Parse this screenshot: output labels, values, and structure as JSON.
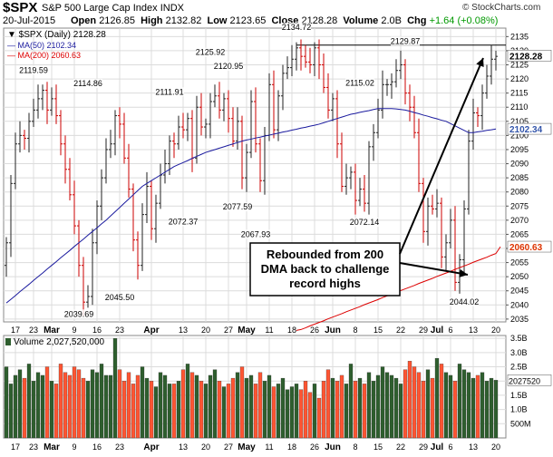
{
  "header": {
    "symbol": "$SPX",
    "name": "S&P 500 Large Cap Index",
    "exchange": "INDX",
    "site": "© StockCharts.com",
    "date": "20-Jul-2015",
    "open_label": "Open",
    "open": "2126.85",
    "high_label": "High",
    "high": "2132.82",
    "low_label": "Low",
    "low": "2123.65",
    "close_label": "Close",
    "close": "2128.28",
    "volume_label": "Volume",
    "volume": "2.0B",
    "chg_label": "Chg",
    "chg": "+1.64 (+0.08%)"
  },
  "legend": {
    "price": "$SPX (Daily) 2128.28",
    "ma50": "MA(50) 2102.34",
    "ma200": "MA(200) 2060.63",
    "volume": "Volume 2,027,520,000"
  },
  "colors": {
    "up": "#222222",
    "down": "#cc0000",
    "ma50": "#1a1a9e",
    "ma200": "#dd0000",
    "vol_up": "#2e5e2e",
    "vol_down": "#ff5533",
    "grid": "#dcdcdc",
    "badge_ma50": "#3355aa",
    "badge_ma200": "#dd3300"
  },
  "annotation": "Rebounded from 200\nDMA back to challenge\nrecord highs",
  "chart_data": {
    "type": "ohlc",
    "price_axis": {
      "range": [
        2034,
        2138
      ],
      "ticks": [
        2035,
        2040,
        2045,
        2050,
        2055,
        2060,
        2065,
        2070,
        2075,
        2080,
        2085,
        2090,
        2095,
        2100,
        2105,
        2110,
        2115,
        2120,
        2125,
        2130,
        2135
      ]
    },
    "volume_axis": {
      "range": [
        0,
        3.6
      ],
      "tick_labels": [
        "3.5B",
        "3.0B",
        "2.5B",
        "2.0B",
        "1.5B",
        "1.0B",
        "500M"
      ],
      "tick_values": [
        3.5,
        3.0,
        2.5,
        2.0,
        1.5,
        1.0,
        0.5
      ]
    },
    "x_tick_labels": [
      {
        "label": "17",
        "i": 2
      },
      {
        "label": "23",
        "i": 6
      },
      {
        "label": "Mar",
        "i": 10
      },
      {
        "label": "9",
        "i": 15
      },
      {
        "label": "16",
        "i": 20
      },
      {
        "label": "23",
        "i": 25
      },
      {
        "label": "Apr",
        "i": 32
      },
      {
        "label": "13",
        "i": 39
      },
      {
        "label": "20",
        "i": 44
      },
      {
        "label": "27",
        "i": 49
      },
      {
        "label": "May",
        "i": 53
      },
      {
        "label": "11",
        "i": 58
      },
      {
        "label": "18",
        "i": 63
      },
      {
        "label": "26",
        "i": 68
      },
      {
        "label": "Jun",
        "i": 72
      },
      {
        "label": "8",
        "i": 77
      },
      {
        "label": "15",
        "i": 82
      },
      {
        "label": "22",
        "i": 87
      },
      {
        "label": "29",
        "i": 92
      },
      {
        "label": "Jul",
        "i": 95
      },
      {
        "label": "6",
        "i": 98
      },
      {
        "label": "13",
        "i": 103
      },
      {
        "label": "20",
        "i": 108
      }
    ],
    "series": [
      {
        "name": "$SPX (Daily)",
        "close": [
          2062,
          2083,
          2097,
          2100,
          2099,
          2105,
          2109,
          2113,
          2116,
          2109,
          2113,
          2107,
          2097,
          2088,
          2079,
          2068,
          2054,
          2041,
          2043,
          2062,
          2075,
          2085,
          2095,
          2097,
          2107,
          2104,
          2092,
          2081,
          2063,
          2054,
          2072,
          2082,
          2067,
          2076,
          2086,
          2090,
          2098,
          2097,
          2103,
          2102,
          2106,
          2092,
          2110,
          2103,
          2104,
          2112,
          2114,
          2109,
          2113,
          2106,
          2098,
          2105,
          2085,
          2094,
          2112,
          2097,
          2084,
          2100,
          2118,
          2102,
          2114,
          2122,
          2124,
          2127,
          2131,
          2128,
          2126,
          2125,
          2131,
          2125,
          2117,
          2109,
          2113,
          2097,
          2082,
          2085,
          2087,
          2077,
          2081,
          2076,
          2096,
          2101,
          2109,
          2118,
          2118,
          2119,
          2123,
          2125,
          2115,
          2110,
          2101,
          2083,
          2066,
          2075,
          2074,
          2076,
          2057,
          2062,
          2070,
          2048,
          2056,
          2074,
          2098,
          2108,
          2107,
          2115,
          2121,
          2127,
          2128
        ]
      },
      {
        "name": "MA(50)",
        "values": [
          2040.7,
          2042.0,
          2043.3,
          2044.7,
          2046.0,
          2047.3,
          2048.7,
          2050.0,
          2051.3,
          2052.7,
          2054.0,
          2055.3,
          2056.7,
          2058.0,
          2059.3,
          2060.7,
          2062.0,
          2063.3,
          2064.7,
          2066.0,
          2067.3,
          2068.7,
          2070.0,
          2071.5,
          2073.0,
          2074.5,
          2076.0,
          2077.5,
          2079.0,
          2080.5,
          2082.0,
          2083.0,
          2084.0,
          2085.0,
          2086.0,
          2087.0,
          2088.0,
          2089.0,
          2089.7,
          2090.4,
          2091.1,
          2091.9,
          2092.6,
          2093.3,
          2094.0,
          2094.5,
          2095.0,
          2095.5,
          2096.0,
          2096.5,
          2097.0,
          2097.5,
          2098.0,
          2098.4,
          2098.7,
          2099.1,
          2099.4,
          2099.8,
          2100.1,
          2100.5,
          2100.8,
          2101.2,
          2101.5,
          2101.9,
          2102.2,
          2102.6,
          2102.9,
          2103.3,
          2103.6,
          2104.0,
          2104.5,
          2105.0,
          2105.5,
          2106.0,
          2106.5,
          2107.0,
          2107.5,
          2107.8,
          2108.2,
          2108.5,
          2108.8,
          2109.2,
          2109.5,
          2109.5,
          2109.5,
          2109.5,
          2109.4,
          2109.2,
          2109.0,
          2108.6,
          2108.1,
          2107.7,
          2107.2,
          2106.8,
          2106.3,
          2105.9,
          2105.4,
          2105.0,
          2104.2,
          2103.4,
          2102.6,
          2101.8,
          2101.0,
          2101.0,
          2101.3,
          2101.5,
          2101.8,
          2102.0,
          2102.3
        ]
      },
      {
        "name": "MA(200)",
        "values": [
          null,
          null,
          null,
          null,
          null,
          null,
          null,
          null,
          null,
          null,
          null,
          null,
          null,
          null,
          null,
          null,
          null,
          null,
          null,
          null,
          null,
          null,
          null,
          null,
          null,
          null,
          null,
          null,
          null,
          null,
          null,
          null,
          null,
          null,
          null,
          null,
          null,
          null,
          null,
          null,
          null,
          null,
          null,
          null,
          null,
          null,
          null,
          null,
          null,
          null,
          null,
          null,
          null,
          null,
          null,
          null,
          null,
          null,
          null,
          null,
          null,
          null,
          null,
          null,
          2031.0,
          2031.3,
          2031.9,
          2032.6,
          2033.2,
          2033.8,
          2034.4,
          2035.1,
          2035.7,
          2036.3,
          2036.9,
          2037.6,
          2038.2,
          2038.8,
          2039.4,
          2040.1,
          2040.7,
          2041.3,
          2041.9,
          2042.6,
          2043.2,
          2043.8,
          2044.4,
          2045.1,
          2045.7,
          2046.3,
          2046.9,
          2047.6,
          2048.2,
          2048.8,
          2049.4,
          2050.1,
          2050.7,
          2051.3,
          2051.9,
          2052.6,
          2053.2,
          2053.8,
          2054.4,
          2055.1,
          2055.7,
          2056.3,
          2056.9,
          2057.6,
          2058.2,
          2060.6
        ]
      },
      {
        "name": "Volume",
        "values": [
          2.5,
          1.9,
          2.2,
          2.4,
          2.1,
          2.6,
          2.0,
          2.3,
          2.2,
          2.5,
          2.0,
          1.9,
          2.6,
          2.3,
          2.2,
          2.5,
          2.4,
          2.1,
          2.0,
          2.4,
          2.3,
          2.6,
          2.2,
          2.2,
          3.5,
          2.4,
          2.0,
          2.3,
          1.9,
          2.2,
          2.5,
          2.1,
          2.0,
          1.8,
          2.3,
          2.2,
          1.9,
          1.9,
          2.0,
          2.4,
          2.6,
          2.3,
          2.2,
          2.0,
          1.9,
          2.2,
          2.4,
          2.0,
          1.8,
          1.9,
          2.1,
          2.3,
          2.5,
          2.1,
          2.2,
          1.9,
          2.3,
          2.0,
          2.2,
          1.8,
          1.9,
          2.1,
          1.7,
          1.8,
          1.9,
          1.7,
          2.0,
          1.6,
          1.9,
          1.4,
          2.0,
          2.4,
          2.1,
          2.0,
          2.2,
          1.9,
          2.6,
          2.0,
          2.1,
          1.9,
          2.3,
          2.0,
          2.2,
          2.5,
          2.3,
          2.2,
          2.1,
          1.9,
          2.4,
          2.7,
          2.5,
          2.3,
          2.0,
          2.4,
          2.1,
          2.8,
          2.6,
          2.3,
          2.2,
          2.0,
          2.6,
          2.4,
          2.3,
          2.1,
          2.2,
          2.3,
          2.0,
          2.1,
          2.03
        ]
      }
    ],
    "labeled_values": [
      {
        "text": "2119.59",
        "i": 6,
        "v": 2119.59
      },
      {
        "text": "2114.86",
        "i": 18,
        "v": 2114.86
      },
      {
        "text": "2111.91",
        "i": 36,
        "v": 2111.91
      },
      {
        "text": "2125.92",
        "i": 45,
        "v": 2125.92
      },
      {
        "text": "2120.95",
        "i": 49,
        "v": 2120.95
      },
      {
        "text": "2134.72",
        "i": 64,
        "v": 2134.72
      },
      {
        "text": "2115.02",
        "i": 78,
        "v": 2115.02
      },
      {
        "text": "2129.87",
        "i": 88,
        "v": 2129.87
      },
      {
        "text": "2039.69",
        "i": 16,
        "v": 2039.69
      },
      {
        "text": "2045.50",
        "i": 25,
        "v": 2045.5
      },
      {
        "text": "2072.37",
        "i": 39,
        "v": 2072.37
      },
      {
        "text": "2077.59",
        "i": 51,
        "v": 2077.59
      },
      {
        "text": "2067.93",
        "i": 55,
        "v": 2067.93
      },
      {
        "text": "2072.14",
        "i": 79,
        "v": 2072.14
      },
      {
        "text": "2044.02",
        "i": 101,
        "v": 2044.02
      }
    ],
    "reference_line": 2132.0,
    "last_price": "2128.28",
    "ma50_last": "2102.34",
    "ma200_last": "2060.63",
    "volume_last": "2027520"
  }
}
